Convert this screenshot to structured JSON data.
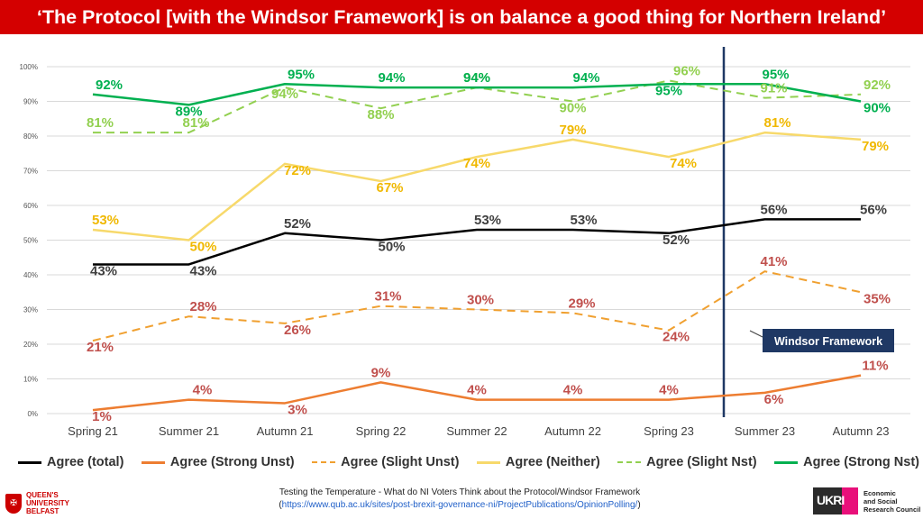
{
  "title": "‘The Protocol [with the Windsor Framework] is on balance a good thing for Northern Ireland’",
  "chart_data": {
    "type": "line",
    "categories": [
      "Spring 21",
      "Summer 21",
      "Autumn 21",
      "Spring 22",
      "Summer 22",
      "Autumn 22",
      "Spring 23",
      "Summer 23",
      "Autumn 23"
    ],
    "ylim": [
      0,
      100
    ],
    "yticks": [
      "0%",
      "10%",
      "20%",
      "30%",
      "40%",
      "50%",
      "60%",
      "70%",
      "80%",
      "90%",
      "100%"
    ],
    "grid": true,
    "legend_position": "bottom",
    "series": [
      {
        "name": "Agree (total)",
        "color": "#000000",
        "dash": "solid",
        "label_color": "#404040",
        "values": [
          43,
          43,
          52,
          50,
          53,
          53,
          52,
          56,
          56
        ],
        "labels": [
          "43%",
          "43%",
          "52%",
          "50%",
          "53%",
          "53%",
          "52%",
          "56%",
          "56%"
        ]
      },
      {
        "name": "Agree (Strong Unst)",
        "color": "#ed7d31",
        "dash": "solid",
        "label_color": "#c0504d",
        "values": [
          1,
          4,
          3,
          9,
          4,
          4,
          4,
          6,
          11
        ],
        "labels": [
          "1%",
          "4%",
          "3%",
          "9%",
          "4%",
          "4%",
          "4%",
          "6%",
          "11%"
        ]
      },
      {
        "name": "Agree (Slight Unst)",
        "color": "#f0a030",
        "dash": "dashed",
        "label_color": "#c0504d",
        "values": [
          21,
          28,
          26,
          31,
          30,
          29,
          24,
          41,
          35
        ],
        "labels": [
          "21%",
          "28%",
          "26%",
          "31%",
          "30%",
          "29%",
          "24%",
          "41%",
          "35%"
        ]
      },
      {
        "name": "Agree (Neither)",
        "color": "#f7d96b",
        "dash": "solid",
        "label_color": "#f0b800",
        "values": [
          53,
          50,
          72,
          67,
          74,
          79,
          74,
          81,
          79
        ],
        "labels": [
          "53%",
          "50%",
          "72%",
          "67%",
          "74%",
          "79%",
          "74%",
          "81%",
          "79%"
        ]
      },
      {
        "name": "Agree (Slight Nst)",
        "color": "#92d050",
        "dash": "dashed",
        "label_color": "#92d050",
        "values": [
          81,
          81,
          94,
          88,
          94,
          90,
          96,
          91,
          92
        ],
        "labels": [
          "81%",
          "81%",
          "94%",
          "88%",
          "94%",
          "90%",
          "96%",
          "91%",
          "92%"
        ]
      },
      {
        "name": "Agree (Strong Nst)",
        "color": "#00b050",
        "dash": "solid",
        "label_color": "#00b050",
        "values": [
          92,
          89,
          95,
          94,
          94,
          94,
          95,
          95,
          90
        ],
        "labels": [
          "92%",
          "89%",
          "95%",
          "94%",
          "94%",
          "94%",
          "95%",
          "95%",
          "90%"
        ]
      }
    ],
    "annotation": {
      "text": "Windsor Framework",
      "color": "#1f3864"
    }
  },
  "footer": {
    "line1": "Testing the Temperature - What do NI Voters Think about the Protocol/Windsor Framework",
    "open_paren": "(",
    "url": "https://www.qub.ac.uk/sites/post-brexit-governance-ni/ProjectPublications/OpinionPolling/",
    "close_paren": ")"
  },
  "logos": {
    "left": [
      "QUEEN'S",
      "UNIVERSITY",
      "BELFAST"
    ],
    "ukri": "UKRI",
    "right": [
      "Economic",
      "and Social",
      "Research Council"
    ]
  }
}
